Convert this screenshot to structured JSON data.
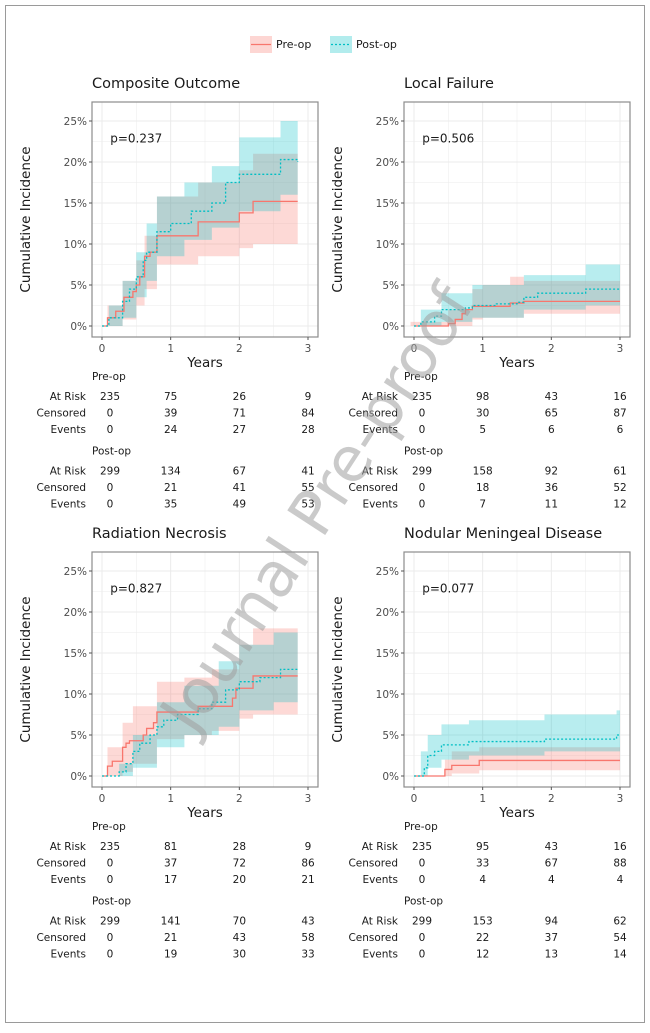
{
  "legend": {
    "pre_label": "Pre-op",
    "post_label": "Post-op",
    "pre_color": "#F8766D",
    "post_color": "#00BFC4"
  },
  "watermark": "Journal Pre-proof",
  "chart_data": [
    {
      "type": "line",
      "title": "Composite Outcome",
      "xlabel": "Years",
      "ylabel": "Cumulative Incidence",
      "xlim": [
        0,
        3
      ],
      "ylim": [
        0,
        25
      ],
      "xticks": [
        "0",
        "1",
        "2",
        "3"
      ],
      "yticks": [
        "0%",
        "5%",
        "10%",
        "15%",
        "20%",
        "25%"
      ],
      "p_value": "p=0.237",
      "series": [
        {
          "name": "Pre-op",
          "step": [
            [
              0,
              0
            ],
            [
              0.08,
              1
            ],
            [
              0.2,
              1.8
            ],
            [
              0.32,
              3.5
            ],
            [
              0.45,
              4.2
            ],
            [
              0.5,
              5
            ],
            [
              0.55,
              6
            ],
            [
              0.62,
              8.5
            ],
            [
              0.7,
              9
            ],
            [
              0.8,
              11
            ],
            [
              1.4,
              12.7
            ],
            [
              2.0,
              13.8
            ],
            [
              2.2,
              15.2
            ],
            [
              2.85,
              15.2
            ]
          ],
          "ci": [
            [
              0.08,
              0,
              2.5
            ],
            [
              0.3,
              0.8,
              5.5
            ],
            [
              0.5,
              2.5,
              8
            ],
            [
              0.62,
              4.5,
              11
            ],
            [
              0.8,
              7.5,
              15.8
            ],
            [
              1.4,
              8.5,
              17.5
            ],
            [
              2.0,
              9.5,
              19
            ],
            [
              2.2,
              10,
              21
            ],
            [
              2.85,
              10,
              21
            ]
          ]
        },
        {
          "name": "Post-op",
          "step": [
            [
              0,
              0
            ],
            [
              0.1,
              1
            ],
            [
              0.3,
              3
            ],
            [
              0.4,
              4.5
            ],
            [
              0.5,
              6
            ],
            [
              0.6,
              8
            ],
            [
              0.65,
              9
            ],
            [
              0.8,
              11.5
            ],
            [
              1.0,
              12.5
            ],
            [
              1.3,
              14
            ],
            [
              1.6,
              15
            ],
            [
              1.8,
              17.5
            ],
            [
              2.0,
              18.5
            ],
            [
              2.3,
              18.5
            ],
            [
              2.6,
              20.3
            ],
            [
              2.85,
              20
            ]
          ],
          "ci": [
            [
              0.1,
              0,
              2.5
            ],
            [
              0.3,
              1,
              5.5
            ],
            [
              0.5,
              3.5,
              9
            ],
            [
              0.65,
              5.5,
              12.5
            ],
            [
              0.8,
              8.5,
              15.8
            ],
            [
              1.2,
              10.5,
              17.5
            ],
            [
              1.6,
              12,
              19.5
            ],
            [
              2.0,
              14,
              23
            ],
            [
              2.6,
              16,
              25
            ],
            [
              2.85,
              16,
              25
            ]
          ]
        }
      ],
      "risk_table": {
        "Pre-op": {
          "At Risk": [
            "235",
            "75",
            "26",
            "9"
          ],
          "Censored": [
            "0",
            "39",
            "71",
            "84"
          ],
          "Events": [
            "0",
            "24",
            "27",
            "28"
          ]
        },
        "Post-op": {
          "At Risk": [
            "299",
            "134",
            "67",
            "41"
          ],
          "Censored": [
            "0",
            "21",
            "41",
            "55"
          ],
          "Events": [
            "0",
            "35",
            "49",
            "53"
          ]
        }
      }
    },
    {
      "type": "line",
      "title": "Local Failure",
      "xlabel": "Years",
      "ylabel": "Cumulative Incidence",
      "xlim": [
        0,
        3
      ],
      "ylim": [
        0,
        25
      ],
      "xticks": [
        "0",
        "1",
        "2",
        "3"
      ],
      "yticks": [
        "0%",
        "5%",
        "10%",
        "15%",
        "20%",
        "25%"
      ],
      "p_value": "p=0.506",
      "series": [
        {
          "name": "Pre-op",
          "step": [
            [
              0,
              0
            ],
            [
              0.5,
              0.3
            ],
            [
              0.6,
              0.8
            ],
            [
              0.7,
              1.5
            ],
            [
              0.75,
              2
            ],
            [
              0.85,
              2.4
            ],
            [
              1.4,
              2.8
            ],
            [
              1.6,
              3
            ],
            [
              3,
              3
            ]
          ],
          "ci": [
            [
              -0.05,
              0,
              0.5
            ],
            [
              0.5,
              0,
              2
            ],
            [
              0.85,
              0.8,
              4.5
            ],
            [
              1.0,
              1,
              5
            ],
            [
              1.4,
              1,
              6
            ],
            [
              1.6,
              1.5,
              5.5
            ],
            [
              3,
              1.5,
              5.5
            ]
          ]
        },
        {
          "name": "Post-op",
          "step": [
            [
              0,
              0
            ],
            [
              0.1,
              0.5
            ],
            [
              0.3,
              1.2
            ],
            [
              0.4,
              2
            ],
            [
              0.75,
              2.2
            ],
            [
              0.85,
              2.5
            ],
            [
              1.2,
              2.7
            ],
            [
              1.5,
              2.9
            ],
            [
              1.6,
              3.5
            ],
            [
              1.8,
              4
            ],
            [
              2.5,
              4.5
            ],
            [
              3,
              4.5
            ]
          ],
          "ci": [
            [
              0.1,
              0,
              2
            ],
            [
              0.4,
              0.5,
              4
            ],
            [
              0.85,
              1,
              5
            ],
            [
              1.6,
              2,
              6.2
            ],
            [
              2.5,
              2.5,
              7.5
            ],
            [
              3,
              2.5,
              7.5
            ]
          ]
        }
      ],
      "risk_table": {
        "Pre-op": {
          "At Risk": [
            "235",
            "98",
            "43",
            "16"
          ],
          "Censored": [
            "0",
            "30",
            "65",
            "87"
          ],
          "Events": [
            "0",
            "5",
            "6",
            "6"
          ]
        },
        "Post-op": {
          "At Risk": [
            "299",
            "158",
            "92",
            "61"
          ],
          "Censored": [
            "0",
            "18",
            "36",
            "52"
          ],
          "Events": [
            "0",
            "7",
            "11",
            "12"
          ]
        }
      }
    },
    {
      "type": "line",
      "title": "Radiation Necrosis",
      "xlabel": "Years",
      "ylabel": "Cumulative Incidence",
      "xlim": [
        0,
        3
      ],
      "ylim": [
        0,
        25
      ],
      "xticks": [
        "0",
        "1",
        "2",
        "3"
      ],
      "yticks": [
        "0%",
        "5%",
        "10%",
        "15%",
        "20%",
        "25%"
      ],
      "p_value": "p=0.827",
      "series": [
        {
          "name": "Pre-op",
          "step": [
            [
              0,
              0
            ],
            [
              0.08,
              1.2
            ],
            [
              0.15,
              1.8
            ],
            [
              0.3,
              3.5
            ],
            [
              0.35,
              4
            ],
            [
              0.4,
              4.3
            ],
            [
              0.6,
              5
            ],
            [
              0.65,
              5.8
            ],
            [
              0.75,
              6.5
            ],
            [
              0.8,
              7.8
            ],
            [
              1.4,
              8.5
            ],
            [
              1.9,
              9.5
            ],
            [
              1.95,
              10.7
            ],
            [
              2.2,
              12.2
            ],
            [
              2.85,
              12.2
            ]
          ],
          "ci": [
            [
              0.08,
              0,
              3.5
            ],
            [
              0.3,
              0.5,
              6.5
            ],
            [
              0.45,
              1.5,
              8.5
            ],
            [
              0.8,
              4.5,
              11.5
            ],
            [
              1.2,
              5,
              12
            ],
            [
              1.6,
              5.5,
              13
            ],
            [
              2.0,
              7,
              16
            ],
            [
              2.2,
              7.5,
              18
            ],
            [
              2.85,
              7.5,
              18
            ]
          ]
        },
        {
          "name": "Post-op",
          "step": [
            [
              0,
              0
            ],
            [
              0.25,
              0.5
            ],
            [
              0.35,
              1.5
            ],
            [
              0.45,
              3
            ],
            [
              0.55,
              4
            ],
            [
              0.7,
              5
            ],
            [
              0.8,
              6
            ],
            [
              0.9,
              6.8
            ],
            [
              1.1,
              7.5
            ],
            [
              1.4,
              8.2
            ],
            [
              1.6,
              9
            ],
            [
              1.8,
              10.5
            ],
            [
              2.0,
              11.5
            ],
            [
              2.3,
              12
            ],
            [
              2.6,
              13
            ],
            [
              2.85,
              12.8
            ]
          ],
          "ci": [
            [
              0.25,
              0,
              1.5
            ],
            [
              0.45,
              1,
              5
            ],
            [
              0.8,
              3.5,
              9
            ],
            [
              1.2,
              5,
              11
            ],
            [
              1.7,
              6,
              14
            ],
            [
              2.0,
              8,
              16
            ],
            [
              2.5,
              9,
              17.5
            ],
            [
              2.85,
              9,
              17.5
            ]
          ]
        }
      ],
      "risk_table": {
        "Pre-op": {
          "At Risk": [
            "235",
            "81",
            "28",
            "9"
          ],
          "Censored": [
            "0",
            "37",
            "72",
            "86"
          ],
          "Events": [
            "0",
            "17",
            "20",
            "21"
          ]
        },
        "Post-op": {
          "At Risk": [
            "299",
            "141",
            "70",
            "43"
          ],
          "Censored": [
            "0",
            "21",
            "43",
            "58"
          ],
          "Events": [
            "0",
            "19",
            "30",
            "33"
          ]
        }
      }
    },
    {
      "type": "line",
      "title": "Nodular Meningeal Disease",
      "xlabel": "Years",
      "ylabel": "Cumulative Incidence",
      "xlim": [
        0,
        3
      ],
      "ylim": [
        0,
        25
      ],
      "xticks": [
        "0",
        "1",
        "2",
        "3"
      ],
      "yticks": [
        "0%",
        "5%",
        "10%",
        "15%",
        "20%",
        "25%"
      ],
      "p_value": "p=0.077",
      "series": [
        {
          "name": "Pre-op",
          "step": [
            [
              0,
              0
            ],
            [
              0.45,
              0.8
            ],
            [
              0.55,
              1.3
            ],
            [
              0.95,
              1.9
            ],
            [
              3,
              1.9
            ]
          ],
          "ci": [
            [
              0.45,
              0,
              2
            ],
            [
              0.55,
              0.3,
              3
            ],
            [
              0.95,
              0.7,
              3.5
            ],
            [
              3,
              0.7,
              3.5
            ]
          ]
        },
        {
          "name": "Post-op",
          "step": [
            [
              0,
              0
            ],
            [
              0.15,
              1
            ],
            [
              0.2,
              2.5
            ],
            [
              0.3,
              3
            ],
            [
              0.4,
              3.8
            ],
            [
              0.8,
              4.2
            ],
            [
              1.9,
              4.5
            ],
            [
              2.95,
              5
            ],
            [
              3,
              5
            ]
          ],
          "ci": [
            [
              0.1,
              0,
              3
            ],
            [
              0.2,
              1,
              5
            ],
            [
              0.4,
              2,
              6.3
            ],
            [
              0.8,
              2.5,
              6.8
            ],
            [
              1.9,
              3,
              7.5
            ],
            [
              2.95,
              3,
              8
            ],
            [
              3,
              3,
              8
            ]
          ]
        }
      ],
      "risk_table": {
        "Pre-op": {
          "At Risk": [
            "235",
            "95",
            "43",
            "16"
          ],
          "Censored": [
            "0",
            "33",
            "67",
            "88"
          ],
          "Events": [
            "0",
            "4",
            "4",
            "4"
          ]
        },
        "Post-op": {
          "At Risk": [
            "299",
            "153",
            "94",
            "62"
          ],
          "Censored": [
            "0",
            "22",
            "37",
            "54"
          ],
          "Events": [
            "0",
            "12",
            "13",
            "14"
          ]
        }
      }
    }
  ]
}
